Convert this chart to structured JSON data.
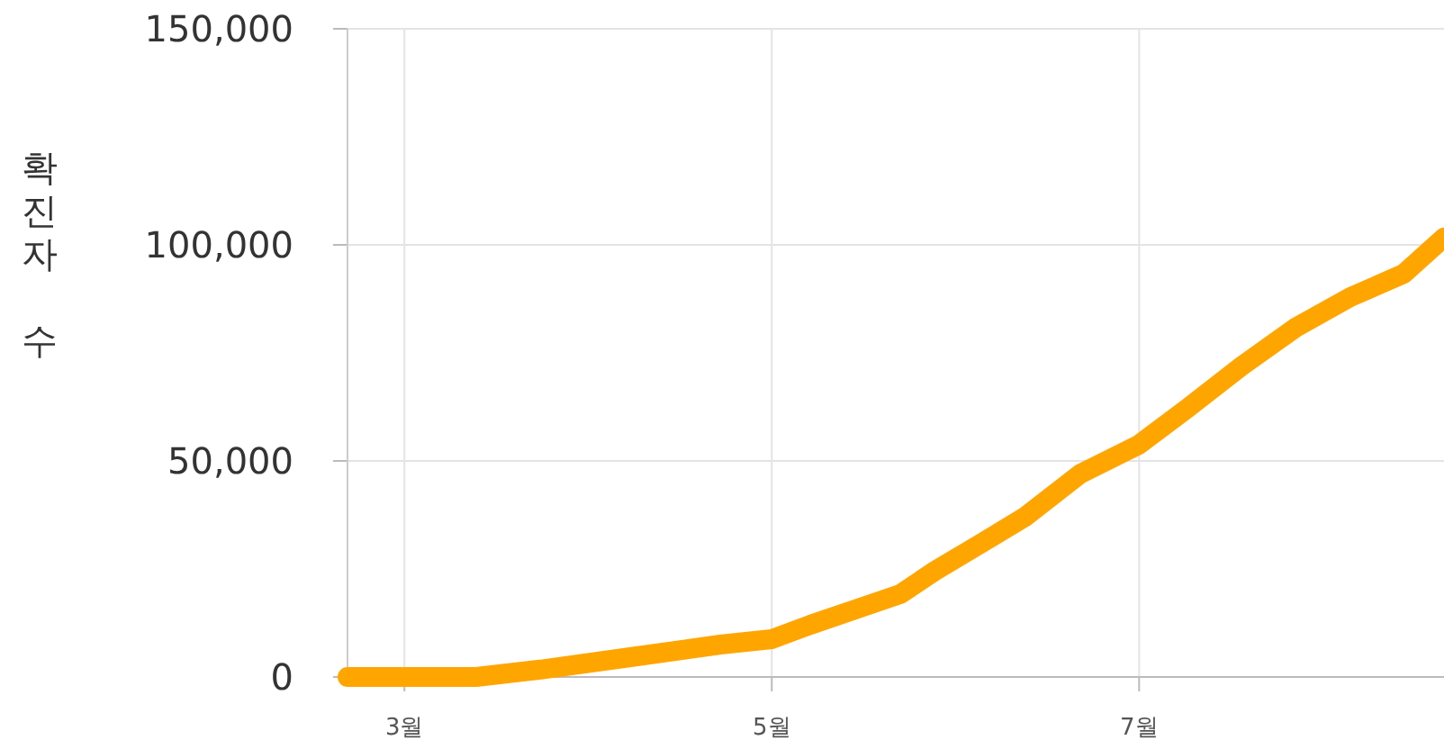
{
  "chart_data": {
    "type": "line",
    "ylabel": "확진자 수",
    "x": [
      2.69,
      3.39,
      3.74,
      4.23,
      4.72,
      5.0,
      5.21,
      5.5,
      5.7,
      5.89,
      6.14,
      6.38,
      6.68,
      7.0,
      7.26,
      7.56,
      7.85,
      8.15,
      8.44,
      8.66
    ],
    "series": [
      {
        "color": "#ffa500",
        "values": [
          0,
          0,
          1700,
          4600,
          7500,
          8750,
          12100,
          16300,
          19200,
          24600,
          30900,
          37100,
          47000,
          53800,
          62100,
          72000,
          80800,
          87900,
          93300,
          101700
        ]
      }
    ],
    "xlim": [
      2.69,
      8.66
    ],
    "xticks": [
      {
        "value": 3,
        "label": "3월"
      },
      {
        "value": 5,
        "label": "5월"
      },
      {
        "value": 7,
        "label": "7월"
      }
    ],
    "ylim": [
      0,
      150000
    ],
    "yticks": [
      {
        "value": 0,
        "label": "0"
      },
      {
        "value": 50000,
        "label": "50,000"
      },
      {
        "value": 100000,
        "label": "100,000"
      },
      {
        "value": 150000,
        "label": "150,000"
      }
    ],
    "grid": true,
    "line_style": "solid"
  }
}
